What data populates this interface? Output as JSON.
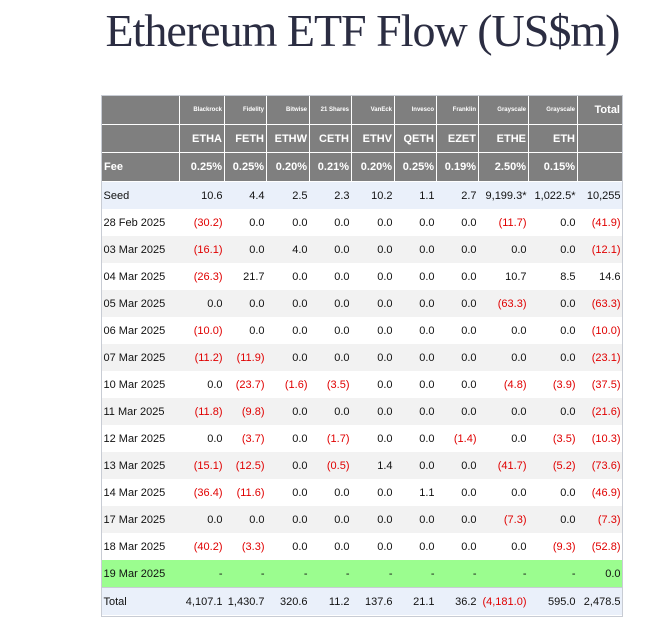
{
  "title": "Ethereum ETF Flow (US$m)",
  "colors": {
    "header_bg": "#7f7f7f",
    "negative": "#e00000",
    "highlight_row": "#9bfd8f",
    "seed_row": "#eaf0fa"
  },
  "issuers": [
    "Blackrock",
    "Fidelity",
    "Bitwise",
    "21 Shares",
    "VanEck",
    "Invesco",
    "Franklin",
    "Grayscale",
    "Grayscale"
  ],
  "total_header": "Total",
  "tickers": [
    "ETHA",
    "FETH",
    "ETHW",
    "CETH",
    "ETHV",
    "QETH",
    "EZET",
    "ETHE",
    "ETH"
  ],
  "fee_label": "Fee",
  "fees": [
    "0.25%",
    "0.25%",
    "0.20%",
    "0.21%",
    "0.20%",
    "0.25%",
    "0.19%",
    "2.50%",
    "0.15%"
  ],
  "rows": [
    {
      "date": "Seed",
      "values": [
        "10.6",
        "4.4",
        "2.5",
        "2.3",
        "10.2",
        "1.1",
        "2.7",
        "9,199.3*",
        "1,022.5*"
      ],
      "total": "10,255"
    },
    {
      "date": "28 Feb 2025",
      "values": [
        "(30.2)",
        "0.0",
        "0.0",
        "0.0",
        "0.0",
        "0.0",
        "0.0",
        "(11.7)",
        "0.0"
      ],
      "total": "(41.9)"
    },
    {
      "date": "03 Mar 2025",
      "values": [
        "(16.1)",
        "0.0",
        "4.0",
        "0.0",
        "0.0",
        "0.0",
        "0.0",
        "0.0",
        "0.0"
      ],
      "total": "(12.1)"
    },
    {
      "date": "04 Mar 2025",
      "values": [
        "(26.3)",
        "21.7",
        "0.0",
        "0.0",
        "0.0",
        "0.0",
        "0.0",
        "10.7",
        "8.5"
      ],
      "total": "14.6"
    },
    {
      "date": "05 Mar 2025",
      "values": [
        "0.0",
        "0.0",
        "0.0",
        "0.0",
        "0.0",
        "0.0",
        "0.0",
        "(63.3)",
        "0.0"
      ],
      "total": "(63.3)"
    },
    {
      "date": "06 Mar 2025",
      "values": [
        "(10.0)",
        "0.0",
        "0.0",
        "0.0",
        "0.0",
        "0.0",
        "0.0",
        "0.0",
        "0.0"
      ],
      "total": "(10.0)"
    },
    {
      "date": "07 Mar 2025",
      "values": [
        "(11.2)",
        "(11.9)",
        "0.0",
        "0.0",
        "0.0",
        "0.0",
        "0.0",
        "0.0",
        "0.0"
      ],
      "total": "(23.1)"
    },
    {
      "date": "10 Mar 2025",
      "values": [
        "0.0",
        "(23.7)",
        "(1.6)",
        "(3.5)",
        "0.0",
        "0.0",
        "0.0",
        "(4.8)",
        "(3.9)"
      ],
      "total": "(37.5)"
    },
    {
      "date": "11 Mar 2025",
      "values": [
        "(11.8)",
        "(9.8)",
        "0.0",
        "0.0",
        "0.0",
        "0.0",
        "0.0",
        "0.0",
        "0.0"
      ],
      "total": "(21.6)"
    },
    {
      "date": "12 Mar 2025",
      "values": [
        "0.0",
        "(3.7)",
        "0.0",
        "(1.7)",
        "0.0",
        "0.0",
        "(1.4)",
        "0.0",
        "(3.5)"
      ],
      "total": "(10.3)"
    },
    {
      "date": "13 Mar 2025",
      "values": [
        "(15.1)",
        "(12.5)",
        "0.0",
        "(0.5)",
        "1.4",
        "0.0",
        "0.0",
        "(41.7)",
        "(5.2)"
      ],
      "total": "(73.6)"
    },
    {
      "date": "14 Mar 2025",
      "values": [
        "(36.4)",
        "(11.6)",
        "0.0",
        "0.0",
        "0.0",
        "1.1",
        "0.0",
        "0.0",
        "0.0"
      ],
      "total": "(46.9)"
    },
    {
      "date": "17 Mar 2025",
      "values": [
        "0.0",
        "0.0",
        "0.0",
        "0.0",
        "0.0",
        "0.0",
        "0.0",
        "(7.3)",
        "0.0"
      ],
      "total": "(7.3)"
    },
    {
      "date": "18 Mar 2025",
      "values": [
        "(40.2)",
        "(3.3)",
        "0.0",
        "0.0",
        "0.0",
        "0.0",
        "0.0",
        "0.0",
        "(9.3)"
      ],
      "total": "(52.8)"
    },
    {
      "date": "19 Mar 2025",
      "values": [
        "-",
        "-",
        "-",
        "-",
        "-",
        "-",
        "-",
        "-",
        "-"
      ],
      "total": "0.0",
      "highlight": true
    }
  ],
  "totals": {
    "label": "Total",
    "values": [
      "4,107.1",
      "1,430.7",
      "320.6",
      "11.2",
      "137.6",
      "21.1",
      "36.2",
      "(4,181.0)",
      "595.0"
    ],
    "total": "2,478.5"
  }
}
